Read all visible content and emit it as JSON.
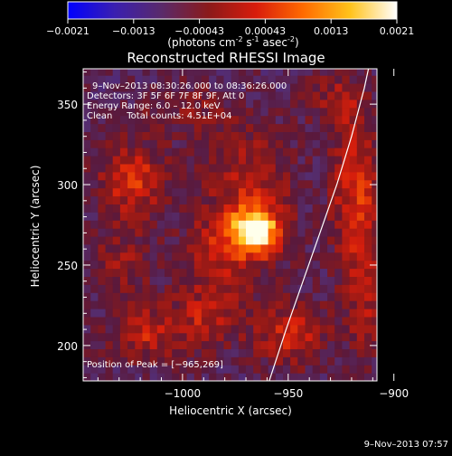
{
  "colorbar": {
    "tick_values": [
      "-0.0021",
      "-0.0013",
      "-0.00043",
      "0.00043",
      "0.0013",
      "0.0021"
    ],
    "unit": "(photons cm",
    "unit_sup1": "-2",
    "unit_mid": " s",
    "unit_sup2": "-1",
    "unit_end": " asec",
    "unit_sup3": "-2",
    "unit_close": ")",
    "range": [
      -0.0021,
      0.0021
    ],
    "colors": [
      "#0000ff",
      "#3a1fb0",
      "#5a2a6a",
      "#8b1a1a",
      "#d81c0c",
      "#ff6a00",
      "#ffc21a",
      "#ffffff"
    ]
  },
  "chart_data": {
    "type": "heatmap",
    "title": "Reconstructed RHESSI Image",
    "xlabel": "Heliocentric X (arcsec)",
    "ylabel": "Heliocentric Y (arcsec)",
    "xlim": [
      -1047,
      -908
    ],
    "ylim": [
      178,
      372
    ],
    "xticks": [
      -1000,
      -950,
      -900
    ],
    "xtick_labels": [
      "−1000",
      "−950",
      "−900"
    ],
    "yticks": [
      200,
      250,
      300,
      350
    ],
    "ytick_labels": [
      "200",
      "250",
      "300",
      "350"
    ],
    "peak": [
      -965,
      269
    ],
    "annotations": {
      "time": "9–Nov–2013 08:30:26.000 to 08:36:26.000",
      "detectors": "Detectors: 3F 5F 6F 7F 8F 9F, Att 0",
      "energy": "Energy Range: 6.0 – 12.0 keV",
      "clean": "Clean     Total counts: 4.51E+04",
      "peak_text": "Position of Peak = [−965,269]"
    },
    "blobs": [
      {
        "x": -967,
        "y": 268,
        "amp": 1.0,
        "sx": 8,
        "sy": 9
      },
      {
        "x": -970,
        "y": 290,
        "amp": 0.45,
        "sx": 14,
        "sy": 30
      },
      {
        "x": -985,
        "y": 255,
        "amp": 0.35,
        "sx": 12,
        "sy": 18
      },
      {
        "x": -1025,
        "y": 300,
        "amp": 0.55,
        "sx": 12,
        "sy": 16
      },
      {
        "x": -1030,
        "y": 250,
        "amp": 0.3,
        "sx": 10,
        "sy": 14
      },
      {
        "x": -920,
        "y": 300,
        "amp": 0.55,
        "sx": 8,
        "sy": 30
      },
      {
        "x": -915,
        "y": 235,
        "amp": 0.4,
        "sx": 8,
        "sy": 30
      },
      {
        "x": -930,
        "y": 350,
        "amp": 0.3,
        "sx": 10,
        "sy": 12
      },
      {
        "x": -1020,
        "y": 205,
        "amp": 0.45,
        "sx": 12,
        "sy": 12
      },
      {
        "x": -990,
        "y": 215,
        "amp": 0.4,
        "sx": 12,
        "sy": 14
      },
      {
        "x": -950,
        "y": 205,
        "amp": 0.5,
        "sx": 12,
        "sy": 14
      },
      {
        "x": -1000,
        "y": 345,
        "amp": 0.25,
        "sx": 14,
        "sy": 12
      }
    ],
    "limb_curve": [
      [
        -959,
        178
      ],
      [
        -951,
        210
      ],
      [
        -943,
        240
      ],
      [
        -935,
        270
      ],
      [
        -927,
        300
      ],
      [
        -920,
        330
      ],
      [
        -914,
        360
      ],
      [
        -912,
        372
      ]
    ]
  },
  "footer": {
    "timestamp": "9–Nov–2013 07:57"
  }
}
